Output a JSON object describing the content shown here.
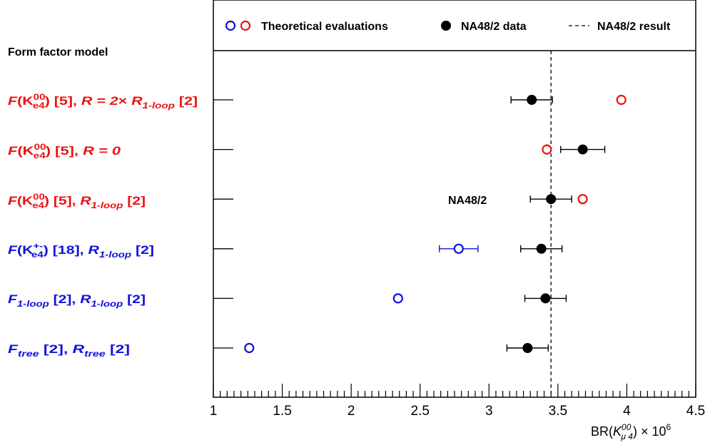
{
  "colors": {
    "red": "#ee1111",
    "blue": "#1111dd",
    "black": "#000000"
  },
  "header": {
    "model_title": "Form factor model"
  },
  "legend": {
    "theory": "Theoretical evaluations",
    "data": "NA48/2 data",
    "result": "NA48/2 result"
  },
  "annotation": "NA48/2",
  "axis": {
    "xlabel": "BR(K⁰⁰μ4) × 10⁶"
  },
  "models": [
    {
      "label": "F(K00e4) [5], R = 2× R1-loop [2]",
      "color": "red"
    },
    {
      "label": "F(K00e4) [5], R = 0",
      "color": "red"
    },
    {
      "label": "F(K00e4) [5], R1-loop [2]",
      "color": "red"
    },
    {
      "label": "F(K+-e4) [18], R1-loop [2]",
      "color": "blue"
    },
    {
      "label": "F1-loop [2], R1-loop [2]",
      "color": "blue"
    },
    {
      "label": "Ftree [2], Rtree [2]",
      "color": "blue"
    }
  ],
  "chart_data": {
    "type": "scatter",
    "xlim": [
      1,
      4.5
    ],
    "x_ticks": [
      "1",
      "1.5",
      "2",
      "2.5",
      "3",
      "3.5",
      "4",
      "4.5"
    ],
    "xlabel": "BR(K⁰⁰μ4) × 10⁶",
    "categories": [
      "F(K00e4) [5], R = 2× R1-loop [2]",
      "F(K00e4) [5], R = 0",
      "F(K00e4) [5], R1-loop [2]",
      "F(K+-e4) [18], R1-loop [2]",
      "F1-loop [2], R1-loop [2]",
      "Ftree [2], Rtree [2]"
    ],
    "series": [
      {
        "name": "Theoretical evaluations",
        "marker": "open-circle",
        "colors": [
          "red",
          "red",
          "red",
          "blue",
          "blue",
          "blue"
        ],
        "values": [
          3.96,
          3.42,
          3.68,
          2.78,
          2.34,
          1.26
        ],
        "errors": [
          0,
          0,
          0,
          0.14,
          0,
          0
        ]
      },
      {
        "name": "NA48/2 data",
        "marker": "filled-circle",
        "values": [
          3.31,
          3.68,
          3.45,
          3.38,
          3.41,
          3.28
        ],
        "errors": [
          0.15,
          0.16,
          0.15,
          0.15,
          0.15,
          0.15
        ]
      }
    ],
    "result_line": {
      "name": "NA48/2 result",
      "value": 3.45
    },
    "grid": false,
    "legend_position": "top"
  }
}
